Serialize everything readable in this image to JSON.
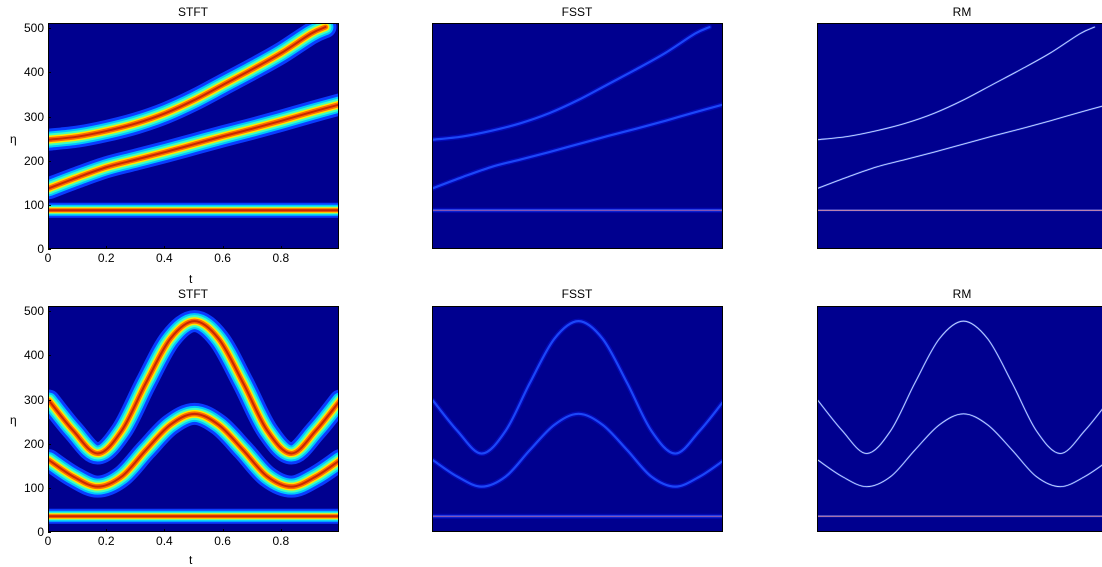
{
  "chart_data": [
    {
      "type": "heatmap",
      "title": "STFT",
      "xlabel": "t",
      "ylabel": "η",
      "xlim": [
        0,
        1
      ],
      "ylim": [
        0,
        512
      ],
      "xticks": [
        "0",
        "0.2",
        "0.4",
        "0.6",
        "0.8"
      ],
      "yticks": [
        "0",
        "100",
        "200",
        "300",
        "400",
        "500"
      ]
    },
    {
      "type": "heatmap",
      "title": "FSST",
      "xlabel": "",
      "ylabel": "",
      "xlim": [
        0,
        1
      ],
      "ylim": [
        0,
        512
      ]
    },
    {
      "type": "heatmap",
      "title": "RM",
      "xlabel": "",
      "ylabel": "",
      "xlim": [
        0,
        1
      ],
      "ylim": [
        0,
        512
      ]
    },
    {
      "type": "heatmap",
      "title": "STFT",
      "xlabel": "t",
      "ylabel": "η",
      "xlim": [
        0,
        1
      ],
      "ylim": [
        0,
        512
      ],
      "xticks": [
        "0",
        "0.2",
        "0.4",
        "0.6",
        "0.8"
      ],
      "yticks": [
        "0",
        "100",
        "200",
        "300",
        "400",
        "500"
      ]
    },
    {
      "type": "heatmap",
      "title": "FSST",
      "xlabel": "",
      "ylabel": "",
      "xlim": [
        0,
        1
      ],
      "ylim": [
        0,
        512
      ]
    },
    {
      "type": "heatmap",
      "title": "RM",
      "xlabel": "",
      "ylabel": "",
      "xlim": [
        0,
        1
      ],
      "ylim": [
        0,
        512
      ]
    }
  ],
  "curves": {
    "row1": [
      {
        "x": [
          0,
          0.1,
          0.2,
          0.3,
          0.4,
          0.5,
          0.6,
          0.7,
          0.8,
          0.9,
          0.95
        ],
        "y": [
          250,
          257,
          270,
          287,
          310,
          340,
          375,
          410,
          447,
          490,
          505
        ]
      },
      {
        "x": [
          0,
          0.1,
          0.2,
          0.3,
          0.4,
          0.5,
          0.6,
          0.7,
          0.8,
          0.9,
          1.0
        ],
        "y": [
          140,
          165,
          188,
          205,
          222,
          240,
          258,
          275,
          293,
          312,
          330
        ]
      },
      {
        "x": [
          0,
          0.2,
          0.4,
          0.5,
          0.6,
          0.8,
          1.0
        ],
        "y": [
          90,
          90,
          90,
          90,
          90,
          90,
          90
        ]
      }
    ],
    "row2": [
      {
        "x": [
          0,
          0.083,
          0.167,
          0.25,
          0.333,
          0.417,
          0.5,
          0.583,
          0.667,
          0.75,
          0.833,
          0.917,
          1.0
        ],
        "y": [
          300,
          232,
          180,
          232,
          340,
          440,
          480,
          440,
          340,
          232,
          180,
          232,
          300
        ]
      },
      {
        "x": [
          0,
          0.083,
          0.167,
          0.25,
          0.333,
          0.417,
          0.5,
          0.583,
          0.667,
          0.75,
          0.833,
          0.917,
          1.0
        ],
        "y": [
          165,
          128,
          105,
          128,
          188,
          245,
          270,
          245,
          188,
          128,
          105,
          128,
          165
        ]
      },
      {
        "x": [
          0,
          0.2,
          0.4,
          0.5,
          0.6,
          0.8,
          1.0
        ],
        "y": [
          38,
          38,
          38,
          38,
          38,
          38,
          38
        ]
      }
    ]
  }
}
